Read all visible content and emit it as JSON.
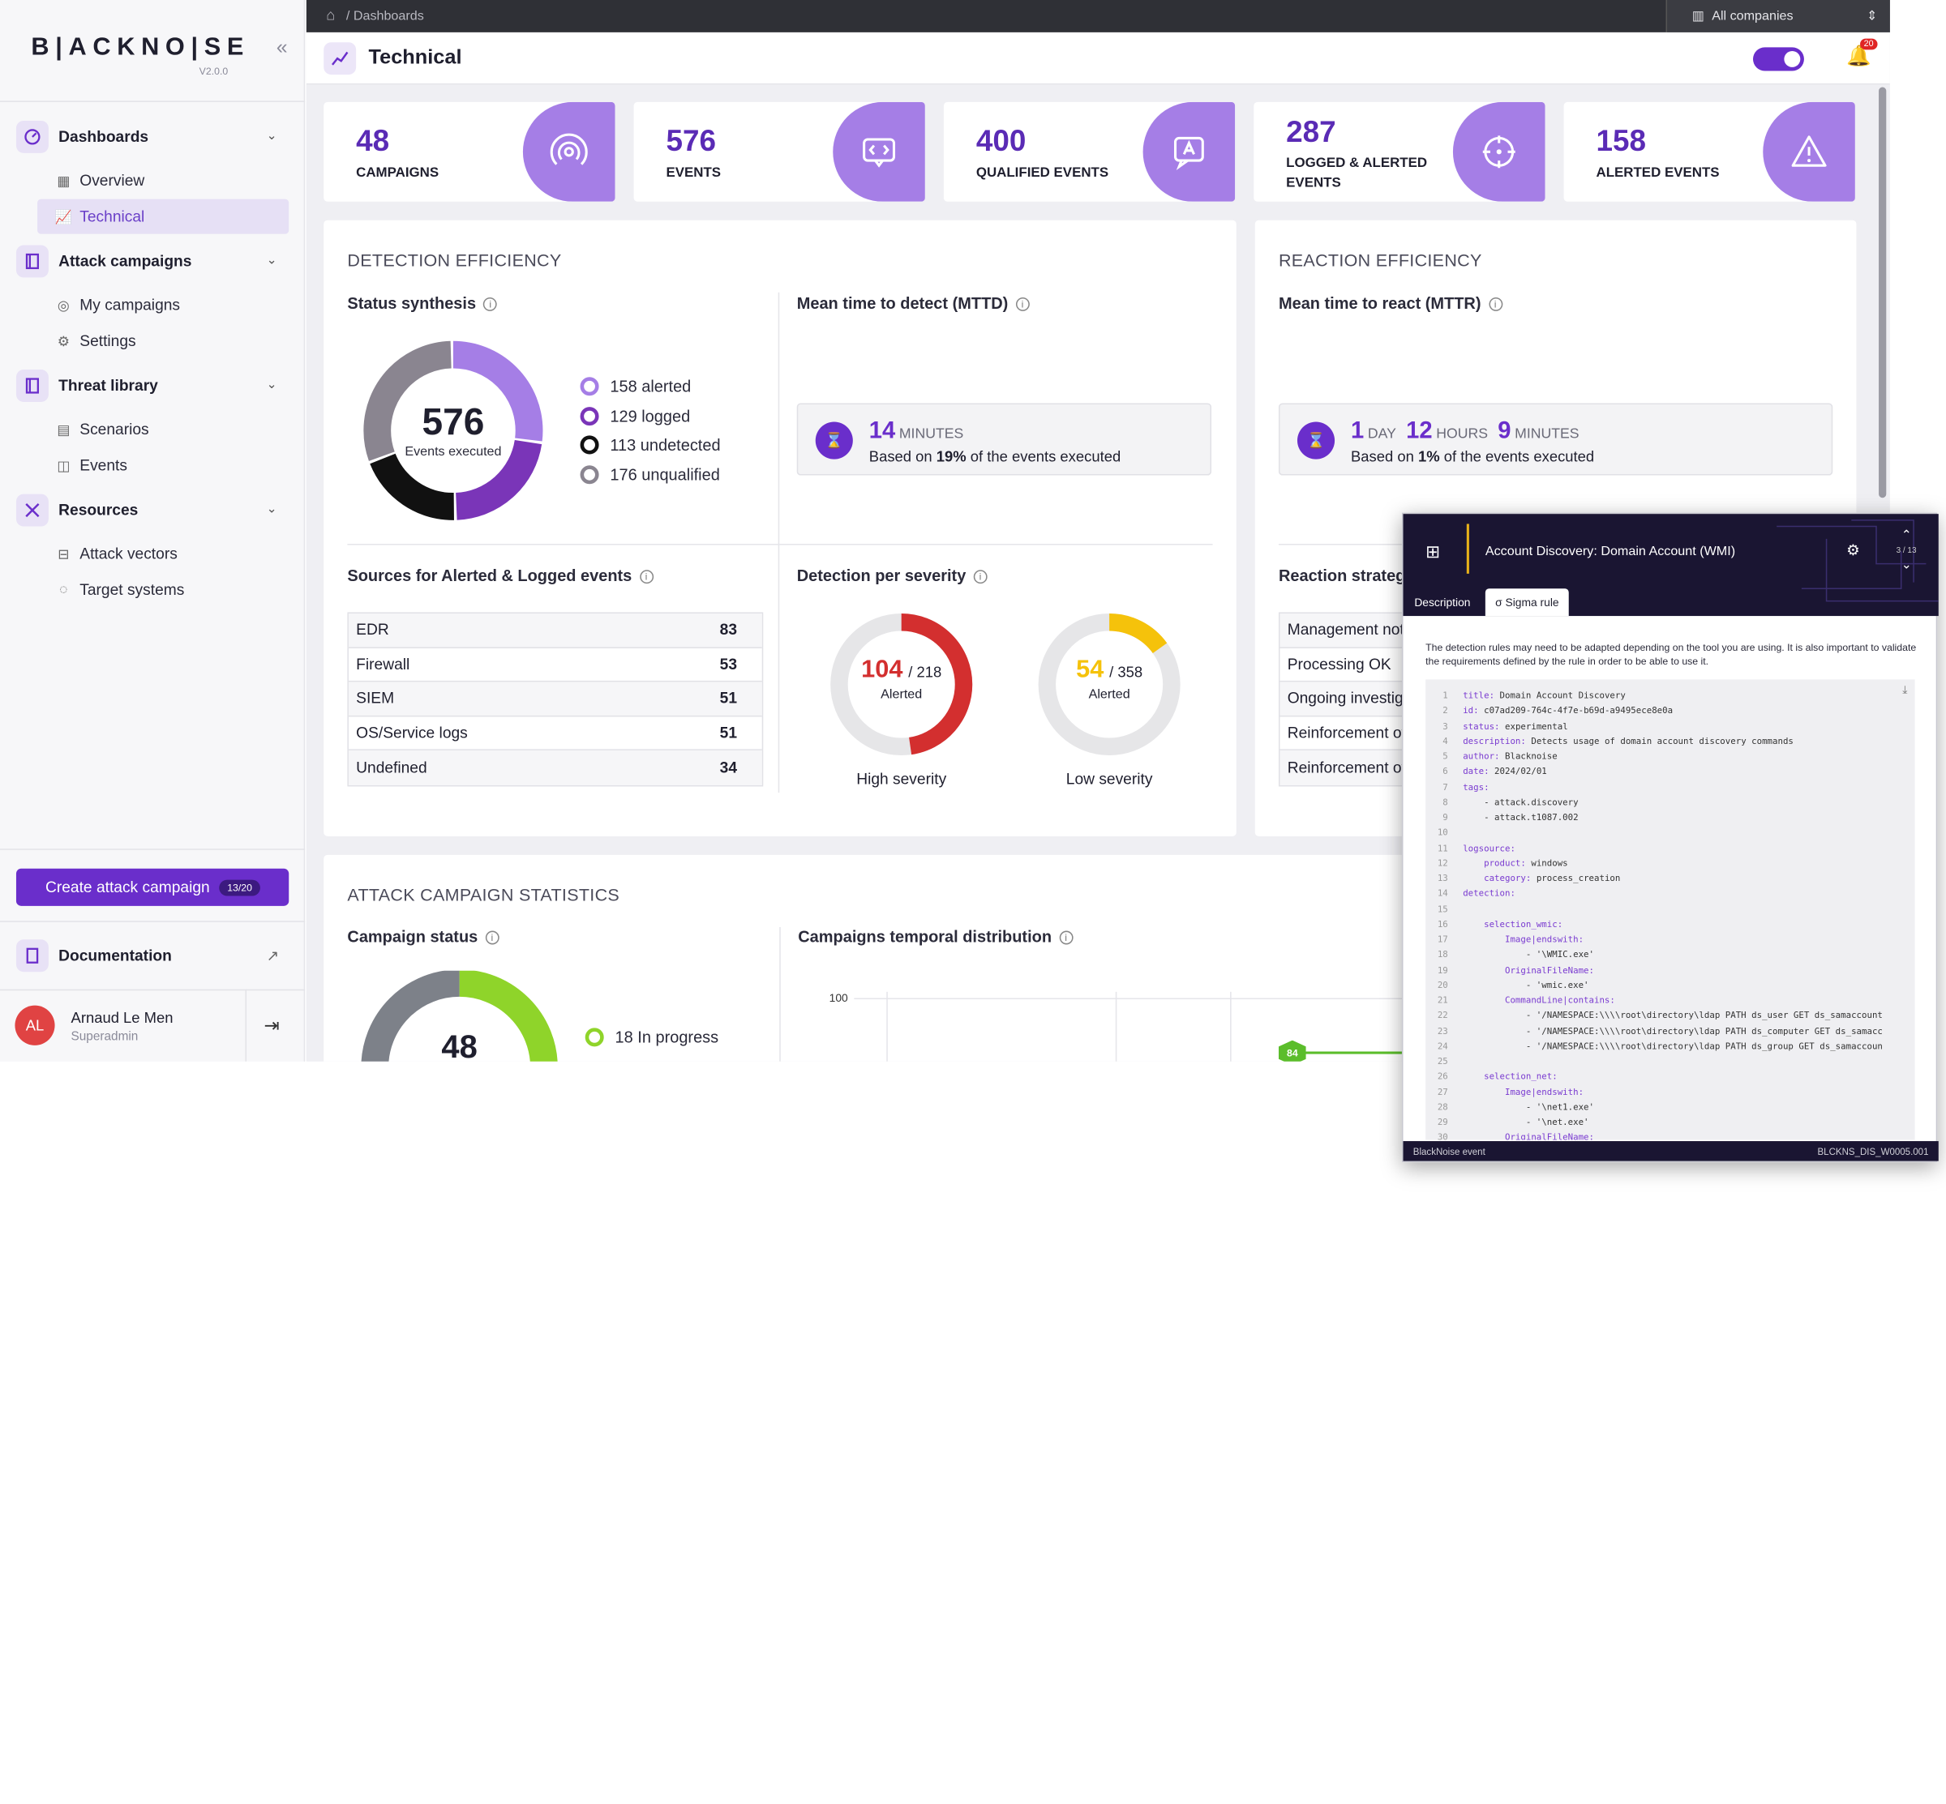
{
  "app": {
    "logo": "B|ACKNO|SE",
    "version": "V2.0.0"
  },
  "sidebar": {
    "groups": [
      {
        "label": "Dashboards",
        "items": [
          "Overview",
          "Technical"
        ]
      },
      {
        "label": "Attack campaigns",
        "items": [
          "My campaigns",
          "Settings"
        ]
      },
      {
        "label": "Threat library",
        "items": [
          "Scenarios",
          "Events"
        ]
      },
      {
        "label": "Resources",
        "items": [
          "Attack vectors",
          "Target systems"
        ]
      }
    ],
    "active_item": "Technical",
    "cta_label": "Create attack campaign",
    "cta_badge": "13/20",
    "documentation": "Documentation",
    "user": {
      "initials": "AL",
      "name": "Arnaud Le Men",
      "role": "Superadmin"
    }
  },
  "topbar": {
    "breadcrumb": "/ Dashboards",
    "company_selector": "All companies"
  },
  "header": {
    "title": "Technical",
    "notifications": "20"
  },
  "kpis": [
    {
      "value": "48",
      "label": "CAMPAIGNS",
      "icon": "broadcast-icon"
    },
    {
      "value": "576",
      "label": "EVENTS",
      "icon": "code-chat-icon"
    },
    {
      "value": "400",
      "label": "QUALIFIED EVENTS",
      "icon": "qualified-chat-icon"
    },
    {
      "value": "287",
      "label": "LOGGED & ALERTED EVENTS",
      "icon": "target-icon"
    },
    {
      "value": "158",
      "label": "ALERTED EVENTS",
      "icon": "warning-icon"
    }
  ],
  "detection": {
    "title": "DETECTION EFFICIENCY",
    "status_title": "Status synthesis",
    "status_total": "576",
    "status_caption": "Events executed",
    "status_legend": [
      {
        "label": "158 alerted",
        "value": 158,
        "color": "#a57ee6"
      },
      {
        "label": "129 logged",
        "value": 129,
        "color": "#7a35b8"
      },
      {
        "label": "113 undetected",
        "value": 113,
        "color": "#111111"
      },
      {
        "label": "176 unqualified",
        "value": 176,
        "color": "#8a8590"
      }
    ],
    "mttd_title": "Mean time to detect (MTTD)",
    "mttd_value": "14",
    "mttd_unit": "MINUTES",
    "mttd_sub_pre": "Based on ",
    "mttd_sub_pct": "19%",
    "mttd_sub_post": " of the events executed",
    "sources_title": "Sources for Alerted & Logged events",
    "sources": [
      {
        "name": "EDR",
        "value": "83"
      },
      {
        "name": "Firewall",
        "value": "53"
      },
      {
        "name": "SIEM",
        "value": "51"
      },
      {
        "name": "OS/Service logs",
        "value": "51"
      },
      {
        "name": "Undefined",
        "value": "34"
      }
    ],
    "severity_title": "Detection per severity",
    "severity": [
      {
        "num": "104",
        "den": "/ 218",
        "caption": "Alerted",
        "label": "High severity",
        "value": 104,
        "total": 218,
        "color": "#d32f2f"
      },
      {
        "num": "54",
        "den": "/ 358",
        "caption": "Alerted",
        "label": "Low severity",
        "value": 54,
        "total": 358,
        "color": "#f5c20b"
      }
    ]
  },
  "reaction": {
    "title": "REACTION EFFICIENCY",
    "mttr_title": "Mean time to react (MTTR)",
    "d_val": "1",
    "d_unit": "DAY",
    "h_val": "12",
    "h_unit": "HOURS",
    "m_val": "9",
    "m_unit": "MINUTES",
    "sub_pre": "Based on ",
    "sub_pct": "1%",
    "sub_post": " of the events executed",
    "strategy_title": "Reaction strateg",
    "strategy_rows": [
      "Management not",
      "Processing OK",
      "Ongoing investiga",
      "Reinforcement of",
      "Reinforcement of"
    ]
  },
  "campaign_stats": {
    "title": "ATTACK CAMPAIGN STATISTICS",
    "status_title": "Campaign status",
    "status_total": "48",
    "status_legend": [
      "18 In progress"
    ],
    "temporal_title": "Campaigns temporal distribution",
    "y_tick": "100",
    "point_label": "84"
  },
  "popup": {
    "title": "Account Discovery: Domain Account (WMI)",
    "counter": "3 / 13",
    "tabs": [
      "Description",
      "Sigma rule"
    ],
    "note": "The detection rules may need to be adapted depending on the tool you are using. It is also important to validate the requirements defined by the rule in order to be able to use it.",
    "code": [
      [
        "title:",
        " Domain Account Discovery"
      ],
      [
        "id:",
        " c07ad209-764c-4f7e-b69d-a9495ece8e0a"
      ],
      [
        "status:",
        " experimental"
      ],
      [
        "description:",
        " Detects usage of domain account discovery commands"
      ],
      [
        "author:",
        " Blacknoise"
      ],
      [
        "date:",
        " 2024/02/01"
      ],
      [
        "tags:",
        ""
      ],
      [
        "",
        "    - attack.discovery"
      ],
      [
        "",
        "    - attack.t1087.002"
      ],
      [
        "",
        ""
      ],
      [
        "logsource:",
        ""
      ],
      [
        "    product:",
        " windows"
      ],
      [
        "    category:",
        " process_creation"
      ],
      [
        "detection:",
        ""
      ],
      [
        "",
        ""
      ],
      [
        "    selection_wmic:",
        ""
      ],
      [
        "        Image|endswith:",
        ""
      ],
      [
        "",
        "            - '\\WMIC.exe'"
      ],
      [
        "        OriginalFileName:",
        ""
      ],
      [
        "",
        "            - 'wmic.exe'"
      ],
      [
        "        CommandLine|contains:",
        ""
      ],
      [
        "",
        "            - '/NAMESPACE:\\\\\\\\root\\directory\\ldap PATH ds_user GET ds_samaccount"
      ],
      [
        "",
        "            - '/NAMESPACE:\\\\\\\\root\\directory\\ldap PATH ds_computer GET ds_samacc"
      ],
      [
        "",
        "            - '/NAMESPACE:\\\\\\\\root\\directory\\ldap PATH ds_group GET ds_samaccoun"
      ],
      [
        "",
        ""
      ],
      [
        "    selection_net:",
        ""
      ],
      [
        "        Image|endswith:",
        ""
      ],
      [
        "",
        "            - '\\net1.exe'"
      ],
      [
        "",
        "            - '\\net.exe'"
      ],
      [
        "        OriginalFileName:",
        ""
      ]
    ],
    "footer_left": "BlackNoise event",
    "footer_right": "BLCKNS_DIS_W0005.001"
  },
  "colors": {
    "accent": "#6a2ecb",
    "kpi_icon_bg": "#a57ee6",
    "high": "#d32f2f",
    "low": "#f5c20b"
  }
}
